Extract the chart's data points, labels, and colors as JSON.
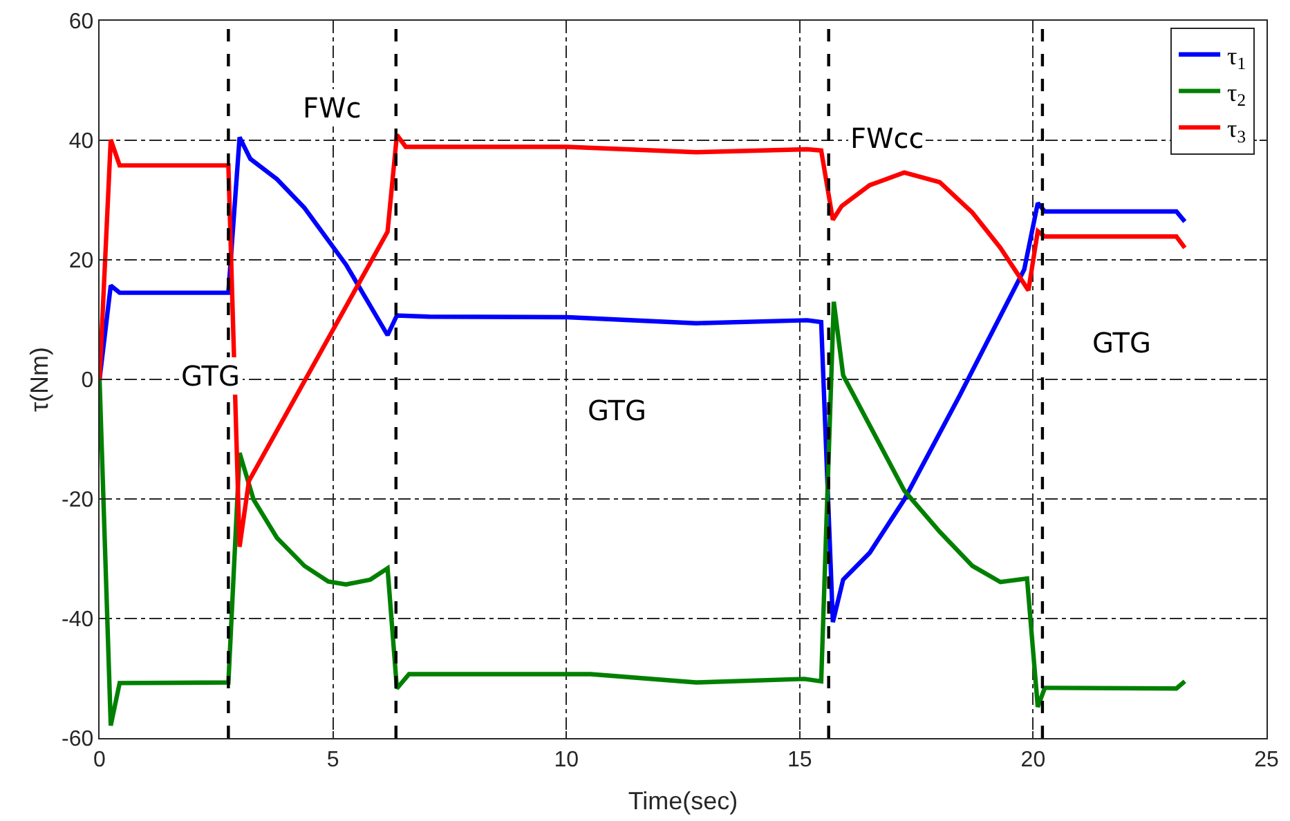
{
  "chart_data": {
    "type": "line",
    "xlabel": "Time(sec)",
    "ylabel": "τ(Nm)",
    "xlim": [
      0,
      25
    ],
    "xticks": [
      0,
      5,
      10,
      15,
      20,
      25
    ],
    "ylim": [
      -60,
      60
    ],
    "yticks": [
      -60,
      -40,
      -20,
      0,
      20,
      40,
      60
    ],
    "grid": true,
    "legend": "top right",
    "line_style": "solid",
    "marker": "none",
    "series": [
      {
        "name": "τ$_{1}$",
        "color": "#0000ff",
        "x": [
          0,
          0.24,
          0.43,
          2.76,
          3.0,
          3.23,
          3.8,
          4.39,
          5.28,
          6.17,
          6.37,
          7.06,
          10.02,
          12.78,
          15.16,
          15.46,
          15.71,
          15.93,
          16.5,
          17.24,
          18.42,
          19.81,
          20.1,
          20.25,
          23.07,
          23.25
        ],
        "values": [
          0,
          15.7,
          14.5,
          14.5,
          40.5,
          36.9,
          33.5,
          28.7,
          19.2,
          7.4,
          10.7,
          10.5,
          10.4,
          9.4,
          9.9,
          9.6,
          -40.6,
          -33.5,
          -29,
          -20.1,
          -2.8,
          18.4,
          29.5,
          28.1,
          28.1,
          26.4
        ]
      },
      {
        "name": "τ$_{2}$",
        "color": "#008000",
        "x": [
          0,
          0.24,
          0.43,
          2.76,
          3.0,
          3.3,
          3.8,
          4.39,
          4.9,
          5.28,
          5.8,
          6.17,
          6.37,
          6.63,
          10.52,
          12.78,
          15.1,
          15.46,
          15.73,
          15.93,
          17.24,
          18.0,
          18.7,
          19.3,
          19.87,
          20.1,
          20.25,
          23.07,
          23.25
        ],
        "values": [
          0,
          -57.9,
          -50.8,
          -50.7,
          -12.3,
          -20.1,
          -26.5,
          -31.2,
          -33.8,
          -34.3,
          -33.5,
          -31.6,
          -51.7,
          -49.3,
          -49.3,
          -50.7,
          -50.1,
          -50.5,
          13,
          0.7,
          -18.6,
          -25.5,
          -31.2,
          -33.9,
          -33.3,
          -54.8,
          -51.6,
          -51.7,
          -50.5
        ]
      },
      {
        "name": "τ$_{3}$",
        "color": "#ff0000",
        "x": [
          0,
          0.24,
          0.43,
          2.76,
          3.0,
          3.2,
          6.17,
          6.37,
          6.56,
          10.02,
          12.78,
          15.16,
          15.46,
          15.71,
          15.9,
          16.5,
          17.24,
          18.0,
          18.7,
          19.3,
          19.9,
          20.1,
          20.25,
          23.07,
          23.25
        ],
        "values": [
          0,
          40.1,
          35.8,
          35.8,
          -28,
          -17,
          24.7,
          40.9,
          38.9,
          38.9,
          38.0,
          38.5,
          38.3,
          26.7,
          29,
          32.5,
          34.6,
          33,
          27.9,
          22,
          14.9,
          24.8,
          23.9,
          23.9,
          22
        ]
      }
    ],
    "ref_lines": [
      {
        "axis": "x",
        "value": 2.76,
        "color": "#000000",
        "line_style": "dashed"
      },
      {
        "axis": "x",
        "value": 6.35,
        "color": "#000000",
        "line_style": "dashed"
      },
      {
        "axis": "x",
        "value": 15.62,
        "color": "#000000",
        "line_style": "dashed"
      },
      {
        "axis": "x",
        "value": 20.2,
        "color": "#000000",
        "line_style": "dashed"
      }
    ],
    "annotations": [
      "GTG",
      "FWc",
      "GTG",
      "FWcc",
      "GTG"
    ]
  }
}
